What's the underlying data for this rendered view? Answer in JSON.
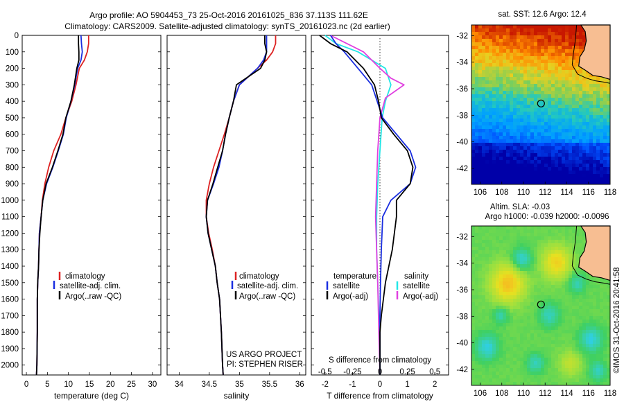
{
  "header": {
    "title_line1": "Argo profile: AO 5904453_73 25-Oct-2016 20161025_836 37.113S 111.62E",
    "title_line2": "Climatology: CARS2009. Satellite-adjusted climatology: synTS_20161023.nc (2d earlier)"
  },
  "colors": {
    "climatology": "#dd2222",
    "satellite": "#1a2ee0",
    "argo": "#000000",
    "salinity_satellite": "#22e6e6",
    "salinity_argo": "#e040e0"
  },
  "depth_axis": {
    "ticks": [
      "0",
      "100",
      "200",
      "300",
      "400",
      "500",
      "600",
      "700",
      "800",
      "900",
      "1000",
      "1100",
      "1200",
      "1300",
      "1400",
      "1500",
      "1600",
      "1700",
      "1800",
      "1900",
      "2000"
    ],
    "ylim": [
      0,
      2060
    ]
  },
  "temperature_panel": {
    "xlabel": "temperature (deg C)",
    "xticks": [
      "0",
      "5",
      "10",
      "15",
      "20",
      "25",
      "30"
    ],
    "legend": [
      "climatology",
      "satellite-adj. clim.",
      "Argo(..raw -QC)"
    ]
  },
  "salinity_panel": {
    "xlabel": "salinity",
    "xticks": [
      "34",
      "34.5",
      "35",
      "35.5",
      "36"
    ],
    "legend": [
      "climatology",
      "satellite-adj. clim.",
      "Argo(..raw -QC)"
    ],
    "project_line1": "US ARGO PROJECT",
    "project_line2": "PI: STEPHEN RISER"
  },
  "difference_panel": {
    "xlabel_bottom": "T difference from climatology",
    "xticks_bottom": [
      "-2",
      "-1",
      "0",
      "1",
      "2"
    ],
    "xlabel_top": "S difference from climatology",
    "xticks_top": [
      "-0.5",
      "-0.25",
      "0",
      "0.25",
      "0.5"
    ],
    "legend_temperature_title": "temperature",
    "legend_temperature": [
      "satellite",
      "Argo(-adj)"
    ],
    "legend_salinity_title": "salinity",
    "legend_salinity": [
      "satellite",
      "Argo(-adj)"
    ]
  },
  "sst_map": {
    "title": "sat. SST: 12.6 Argo: 12.4",
    "yticks": [
      "-32",
      "-34",
      "-36",
      "-38",
      "-40",
      "-42"
    ],
    "xticks": [
      "106",
      "108",
      "110",
      "112",
      "114",
      "116",
      "118"
    ],
    "float_lon": 111.62,
    "float_lat": -37.113
  },
  "sla_map": {
    "title_line1": "Altim. SLA: -0.03",
    "title_line2": "Argo h1000: -0.039 h2000: -0.0096",
    "yticks": [
      "-32",
      "-34",
      "-36",
      "-38",
      "-40",
      "-42"
    ],
    "xticks": [
      "106",
      "108",
      "110",
      "112",
      "114",
      "116",
      "118"
    ],
    "float_lon": 111.62,
    "float_lat": -37.113
  },
  "credit": "©IMOS 31-Oct-2016 20:41:58",
  "chart_data": [
    {
      "type": "line",
      "panel": "temperature",
      "xlim": [
        -1,
        32
      ],
      "ylim": [
        0,
        2060
      ],
      "xlabel": "temperature (deg C)",
      "ylabel": "",
      "series": [
        {
          "name": "climatology",
          "x": [
            14.8,
            14.8,
            14.5,
            13.8,
            12.6,
            11.8,
            10.8,
            9.4,
            8.2,
            6.5,
            5.3,
            4.4,
            3.8,
            3.5,
            3.1,
            3.0,
            2.9,
            2.7,
            2.6,
            2.6,
            2.5,
            2.4
          ],
          "y": [
            0,
            50,
            100,
            150,
            200,
            300,
            400,
            500,
            600,
            700,
            800,
            900,
            1000,
            1100,
            1200,
            1300,
            1400,
            1500,
            1600,
            1800,
            2000,
            2060
          ]
        },
        {
          "name": "satellite-adj. clim.",
          "x": [
            13.0,
            13.1,
            13.3,
            13.0,
            12.2,
            11.5,
            10.6,
            9.5,
            8.8,
            7.6,
            6.3,
            4.8,
            3.9,
            3.5,
            3.1,
            3.0,
            2.9,
            2.7,
            2.6,
            2.6,
            2.5,
            2.4
          ],
          "y": [
            0,
            50,
            100,
            150,
            200,
            300,
            400,
            500,
            600,
            700,
            800,
            900,
            1000,
            1100,
            1200,
            1300,
            1400,
            1500,
            1600,
            1800,
            2000,
            2060
          ]
        },
        {
          "name": "Argo(..raw -QC)",
          "x": [
            12.4,
            12.4,
            12.5,
            12.5,
            12.0,
            11.4,
            10.6,
            9.4,
            8.7,
            7.5,
            6.2,
            4.7,
            3.9,
            3.5,
            3.2,
            3.0,
            2.9,
            2.7,
            2.6,
            2.6,
            2.5,
            2.4
          ],
          "y": [
            0,
            50,
            100,
            150,
            200,
            300,
            400,
            500,
            600,
            700,
            800,
            900,
            1000,
            1100,
            1200,
            1300,
            1400,
            1500,
            1600,
            1800,
            2000,
            2060
          ]
        }
      ]
    },
    {
      "type": "line",
      "panel": "salinity",
      "xlim": [
        33.8,
        36.1
      ],
      "ylim": [
        0,
        2060
      ],
      "xlabel": "salinity",
      "ylabel": "",
      "series": [
        {
          "name": "climatology",
          "x": [
            35.6,
            35.6,
            35.55,
            35.45,
            35.3,
            35.0,
            34.9,
            34.83,
            34.75,
            34.66,
            34.57,
            34.5,
            34.45,
            34.45,
            34.49,
            34.55,
            34.6,
            34.63,
            34.67,
            34.7,
            34.72,
            34.73
          ],
          "y": [
            0,
            50,
            100,
            150,
            200,
            300,
            400,
            500,
            600,
            700,
            800,
            900,
            1000,
            1100,
            1200,
            1300,
            1400,
            1500,
            1600,
            1800,
            2000,
            2060
          ]
        },
        {
          "name": "satellite-adj. clim.",
          "x": [
            35.45,
            35.45,
            35.45,
            35.4,
            35.3,
            35.0,
            34.9,
            34.83,
            34.77,
            34.72,
            34.66,
            34.57,
            34.47,
            34.45,
            34.48,
            34.54,
            34.6,
            34.63,
            34.67,
            34.7,
            34.72,
            34.73
          ],
          "y": [
            0,
            50,
            100,
            150,
            200,
            300,
            400,
            500,
            600,
            700,
            800,
            900,
            1000,
            1100,
            1200,
            1300,
            1400,
            1500,
            1600,
            1800,
            2000,
            2060
          ]
        },
        {
          "name": "Argo(..raw -QC)",
          "x": [
            35.42,
            35.42,
            35.45,
            35.42,
            35.35,
            34.95,
            34.9,
            34.83,
            34.77,
            34.72,
            34.64,
            34.56,
            34.47,
            34.45,
            34.48,
            34.54,
            34.6,
            34.63,
            34.67,
            34.7,
            34.72,
            34.73
          ],
          "y": [
            0,
            50,
            100,
            150,
            200,
            300,
            400,
            500,
            600,
            700,
            800,
            900,
            1000,
            1100,
            1200,
            1300,
            1400,
            1500,
            1600,
            1800,
            2000,
            2060
          ]
        }
      ]
    },
    {
      "type": "line",
      "panel": "difference",
      "xlim": [
        -2.5,
        2.5
      ],
      "ylim": [
        0,
        2060
      ],
      "xlabel": "T difference from climatology",
      "ylabel": "",
      "series": [
        {
          "name": "temperature satellite",
          "x": [
            -1.8,
            -1.6,
            -1.3,
            -0.8,
            -0.3,
            -0.1,
            0.1,
            0.6,
            1.1,
            1.3,
            1.1,
            0.4,
            0.1,
            0.05,
            0.02,
            0,
            0,
            0,
            0
          ],
          "y": [
            0,
            50,
            100,
            200,
            300,
            400,
            500,
            600,
            700,
            800,
            900,
            1000,
            1100,
            1300,
            1500,
            1700,
            1800,
            2000,
            2060
          ]
        },
        {
          "name": "temperature Argo(-adj)",
          "x": [
            -2.2,
            -1.8,
            -1.2,
            -0.6,
            -0.2,
            -0.05,
            0.05,
            0.5,
            1.0,
            1.2,
            1.1,
            0.6,
            0.6,
            0.45,
            0.2,
            0.05,
            0,
            0,
            0
          ],
          "y": [
            0,
            50,
            100,
            200,
            300,
            400,
            500,
            600,
            700,
            800,
            900,
            1000,
            1100,
            1300,
            1500,
            1700,
            1800,
            2000,
            2060
          ]
        },
        {
          "name": "salinity satellite",
          "x": [
            -0.5,
            -0.4,
            -0.2,
            0.05,
            0.1,
            0.05,
            0.02,
            0,
            -0.02,
            -0.03,
            -0.03,
            -0.02,
            -0.01,
            0,
            0
          ],
          "y": [
            0,
            50,
            100,
            200,
            300,
            400,
            500,
            700,
            900,
            1100,
            1300,
            1500,
            1700,
            1900,
            2060
          ]
        },
        {
          "name": "salinity Argo(-adj)",
          "x": [
            -0.45,
            -0.3,
            -0.15,
            0.0,
            0.1,
            0.22,
            0.05,
            0.0,
            -0.02,
            -0.03,
            -0.04,
            -0.03,
            -0.02,
            -0.01,
            0
          ],
          "y": [
            0,
            50,
            100,
            200,
            260,
            300,
            380,
            500,
            700,
            900,
            1100,
            1300,
            1500,
            1800,
            2060
          ]
        }
      ]
    }
  ]
}
